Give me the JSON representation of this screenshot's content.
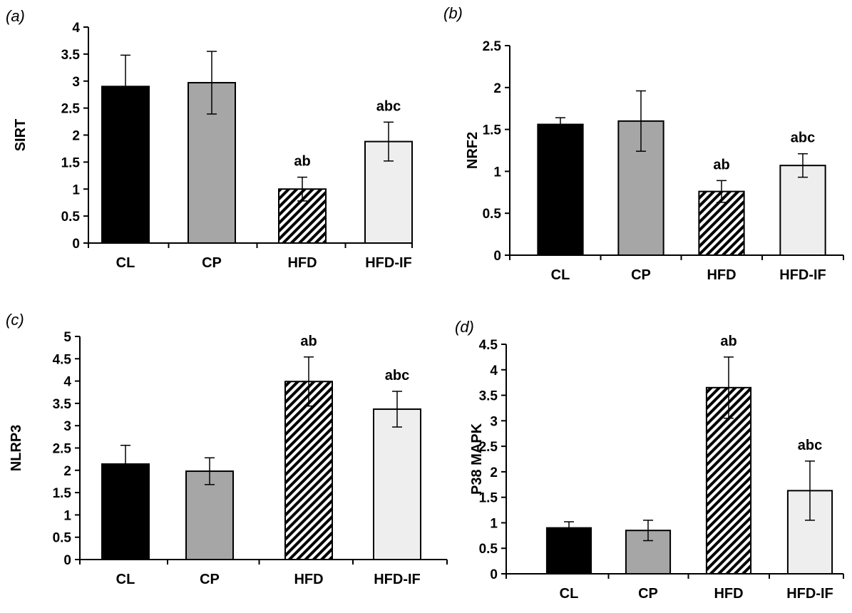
{
  "colors": {
    "CL": "#000000",
    "CP": "#a6a6a6",
    "HFD": "hatch",
    "HFD-IF": "#eeeeee",
    "axis": "#000000"
  },
  "chart_data": [
    {
      "type": "bar",
      "panel_label": "(a)",
      "ylabel": "SIRT",
      "categories": [
        "CL",
        "CP",
        "HFD",
        "HFD-IF"
      ],
      "values": [
        2.9,
        2.97,
        1.0,
        1.88
      ],
      "errors": [
        0.58,
        0.58,
        0.22,
        0.36
      ],
      "annotations": [
        "",
        "",
        "ab",
        "abc"
      ],
      "ylim": [
        0,
        4
      ],
      "yticks": [
        "0",
        "0.5",
        "1",
        "1.5",
        "2",
        "2.5",
        "3",
        "3.5",
        "4"
      ],
      "grid": false
    },
    {
      "type": "bar",
      "panel_label": "(b)",
      "ylabel": "NRF2",
      "categories": [
        "CL",
        "CP",
        "HFD",
        "HFD-IF"
      ],
      "values": [
        1.56,
        1.6,
        0.76,
        1.07
      ],
      "errors": [
        0.08,
        0.36,
        0.13,
        0.14
      ],
      "annotations": [
        "",
        "",
        "ab",
        "abc"
      ],
      "ylim": [
        0,
        2.5
      ],
      "yticks": [
        "0",
        "0.5",
        "1",
        "1.5",
        "2",
        "2.5"
      ],
      "grid": false
    },
    {
      "type": "bar",
      "panel_label": "(c)",
      "ylabel": "NLRP3",
      "categories": [
        "CL",
        "CP",
        "HFD",
        "HFD-IF"
      ],
      "values": [
        2.14,
        1.98,
        3.99,
        3.37
      ],
      "errors": [
        0.42,
        0.3,
        0.55,
        0.4
      ],
      "annotations": [
        "",
        "",
        "ab",
        "abc"
      ],
      "ylim": [
        0,
        5
      ],
      "yticks": [
        "0",
        "0.5",
        "1",
        "1.5",
        "2",
        "2.5",
        "3",
        "3.5",
        "4",
        "4.5",
        "5"
      ],
      "grid": false
    },
    {
      "type": "bar",
      "panel_label": "(d)",
      "ylabel": "P38 MAPK",
      "categories": [
        "CL",
        "CP",
        "HFD",
        "HFD-IF"
      ],
      "values": [
        0.9,
        0.85,
        3.65,
        1.63
      ],
      "errors": [
        0.12,
        0.2,
        0.6,
        0.58
      ],
      "annotations": [
        "",
        "",
        "ab",
        "abc"
      ],
      "ylim": [
        0,
        4.5
      ],
      "yticks": [
        "0",
        "0.5",
        "1",
        "1.5",
        "2",
        "2.5",
        "3",
        "3.5",
        "4",
        "4.5"
      ],
      "grid": false
    }
  ]
}
